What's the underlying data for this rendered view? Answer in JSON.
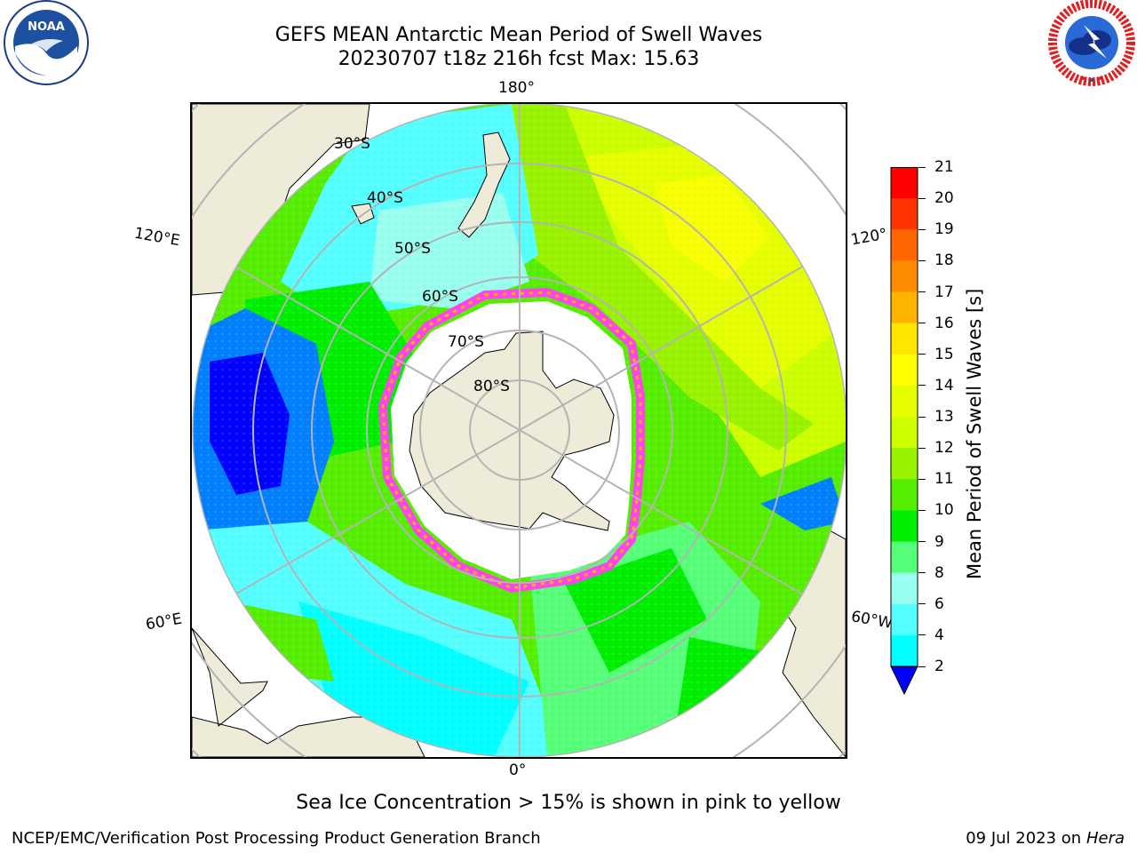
{
  "header": {
    "title_line1": "GEFS MEAN Antarctic Mean Period of Swell Waves",
    "title_line2": "20230707 t18z 216h fcst   Max: 15.63"
  },
  "logos": {
    "left": {
      "icon": "noaa-logo-icon",
      "text": "NOAA"
    },
    "right": {
      "icon": "national-weather-service-logo-icon"
    }
  },
  "map": {
    "projection": "south-polar-stereographic",
    "longitude_labels": {
      "top": "180°",
      "bottom": "0°",
      "left_upper": "120°E",
      "left_lower": "60°E",
      "right_upper": "120°",
      "right_lower": "60°W"
    },
    "latitude_labels": [
      "30°S",
      "40°S",
      "50°S",
      "60°S",
      "70°S",
      "80°S"
    ],
    "colors": {
      "land": "#eeecd9",
      "ice_free_antarctica": "#ffffff",
      "grid": "#b4b4b4"
    }
  },
  "colorbar": {
    "title": "Mean Period of Swell Waves [s]",
    "ticks": [
      "21",
      "20",
      "19",
      "18",
      "17",
      "16",
      "15",
      "14",
      "13",
      "12",
      "11",
      "10",
      "9",
      "8",
      "6",
      "4",
      "2"
    ],
    "colors": [
      "#ff0000",
      "#ff3300",
      "#ff6600",
      "#ff8c00",
      "#ffb400",
      "#ffe600",
      "#ffff00",
      "#e6ff00",
      "#ccff00",
      "#99f200",
      "#55ee00",
      "#00ee00",
      "#55ff77",
      "#99ffee",
      "#55ffff",
      "#00ffff",
      "#0080ff"
    ],
    "extend_color": "#0000ff"
  },
  "caption": "Sea Ice Concentration > 15% is shown in pink to yellow",
  "footer": {
    "left": "NCEP/EMC/Verification Post Processing Product Generation Branch",
    "right_prefix": "09 Jul 2023 on ",
    "right_host": "Hera"
  }
}
